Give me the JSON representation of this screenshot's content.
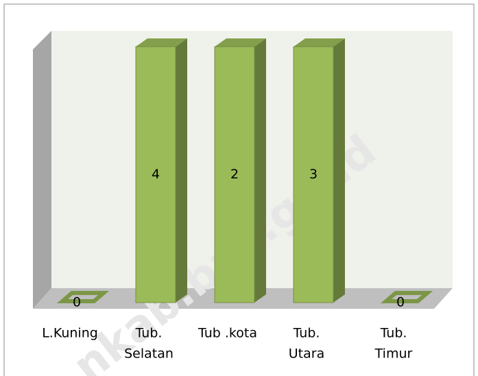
{
  "chart_data": {
    "type": "bar",
    "stacked": "percent",
    "categories": [
      [
        "L.Kuning"
      ],
      [
        "Tub.",
        "Selatan"
      ],
      [
        "Tub .kota"
      ],
      [
        "Tub.",
        "Utara"
      ],
      [
        "Tub.",
        "Timur"
      ]
    ],
    "series": [
      {
        "color": "#9bbb59",
        "values": [
          0,
          4,
          2,
          3,
          0
        ]
      }
    ],
    "ylim": [
      0,
      100
    ],
    "watermark": "nkab.bps.go.id"
  }
}
